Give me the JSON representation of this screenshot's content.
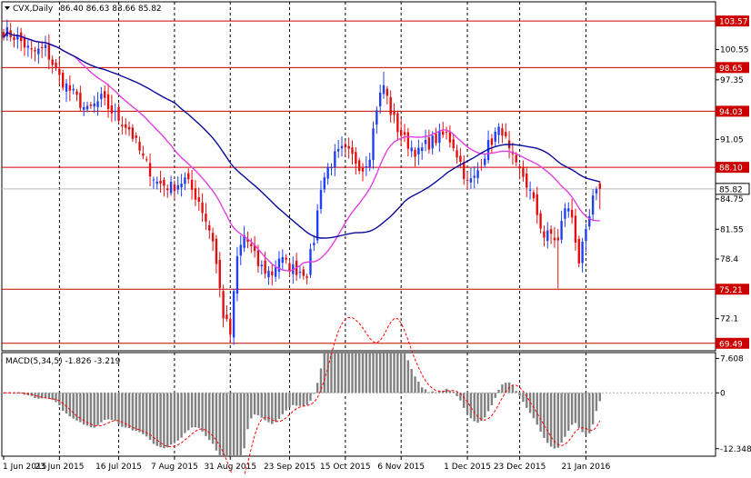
{
  "header": {
    "symbol_label": "CVX,Daily",
    "ohlc_values": "86.40 86.63 83.66 85.82"
  },
  "macd_header": "MACD(5,34,5) -1.826 -3.219",
  "chart_data": [
    {
      "type": "candlestick",
      "symbol": "CVX",
      "timeframe": "Daily",
      "xlabel": "",
      "ylabel": "",
      "ohlc_last": {
        "open": 86.4,
        "high": 86.63,
        "low": 83.66,
        "close": 85.82
      },
      "x_ticks": [
        "1 Jun 2015",
        "23 Jun 2015",
        "16 Jul 2015",
        "7 Aug 2015",
        "31 Aug 2015",
        "23 Sep 2015",
        "15 Oct 2015",
        "6 Nov 2015",
        "1 Dec 2015",
        "23 Dec 2015",
        "21 Jan 2016"
      ],
      "y_ticks": [
        100.55,
        97.35,
        91.05,
        84.75,
        81.55,
        78.4,
        72.1
      ],
      "ylim": [
        68.7,
        105.6
      ],
      "price_label": 85.82,
      "levels": [
        {
          "value": 103.57,
          "label": "103.57"
        },
        {
          "value": 98.65,
          "label": "98.65"
        },
        {
          "value": 94.03,
          "label": "94.03"
        },
        {
          "value": 88.1,
          "label": "88.10"
        },
        {
          "value": 75.21,
          "label": "75.21"
        },
        {
          "value": 69.49,
          "label": "69.49"
        }
      ],
      "colors": {
        "up": "#1f3ff0",
        "down": "#e01010",
        "ma_fast": "#e040e0",
        "ma_slow": "#0a0a9a",
        "level": "#cc0000",
        "price_line": "#bbbbbb"
      },
      "close_anchors": [
        [
          0,
          102.5
        ],
        [
          4,
          101.8
        ],
        [
          8,
          100.2
        ],
        [
          12,
          100.6
        ],
        [
          16,
          97.6
        ],
        [
          20,
          95.8
        ],
        [
          24,
          94.0
        ],
        [
          28,
          95.3
        ],
        [
          32,
          93.6
        ],
        [
          36,
          92.2
        ],
        [
          40,
          89.0
        ],
        [
          44,
          86.5
        ],
        [
          48,
          86.0
        ],
        [
          52,
          86.8
        ],
        [
          56,
          84.6
        ],
        [
          60,
          80.5
        ],
        [
          63,
          72.5
        ],
        [
          65,
          70.5
        ],
        [
          67,
          78.5
        ],
        [
          69,
          80.9
        ],
        [
          71,
          79.5
        ],
        [
          73,
          77.8
        ],
        [
          75,
          77.2
        ],
        [
          77,
          76.9
        ],
        [
          79,
          78.6
        ],
        [
          81,
          77.8
        ],
        [
          83,
          77.4
        ],
        [
          85,
          77.2
        ],
        [
          87,
          77.0
        ],
        [
          89,
          80.5
        ],
        [
          91,
          86.2
        ],
        [
          93,
          88.0
        ],
        [
          95,
          89.2
        ],
        [
          97,
          89.8
        ],
        [
          99,
          89.5
        ],
        [
          101,
          88.8
        ],
        [
          103,
          88.0
        ],
        [
          105,
          89.6
        ],
        [
          107,
          94.5
        ],
        [
          109,
          96.8
        ],
        [
          111,
          94.0
        ],
        [
          113,
          92.2
        ],
        [
          115,
          91.0
        ],
        [
          117,
          90.2
        ],
        [
          119,
          89.6
        ],
        [
          121,
          90.4
        ],
        [
          123,
          90.9
        ],
        [
          125,
          91.3
        ],
        [
          127,
          91.6
        ],
        [
          129,
          90.5
        ],
        [
          131,
          88.6
        ],
        [
          133,
          86.4
        ],
        [
          135,
          86.9
        ],
        [
          137,
          88.7
        ],
        [
          139,
          90.4
        ],
        [
          141,
          91.6
        ],
        [
          143,
          92.1
        ],
        [
          145,
          89.6
        ],
        [
          147,
          88.0
        ],
        [
          149,
          87.2
        ],
        [
          151,
          85.4
        ],
        [
          153,
          83.2
        ],
        [
          155,
          80.8
        ],
        [
          157,
          81.0
        ],
        [
          159,
          80.2
        ],
        [
          161,
          84.0
        ],
        [
          163,
          82.9
        ],
        [
          165,
          78.2
        ],
        [
          167,
          80.9
        ],
        [
          169,
          84.6
        ],
        [
          171,
          85.8
        ]
      ],
      "moving_averages": [
        {
          "name": "",
          "period": 21,
          "color": "#e040e0"
        },
        {
          "name": "",
          "period": 50,
          "color": "#0a0a9a"
        }
      ]
    },
    {
      "type": "histogram",
      "indicator": "MACD",
      "params": "5,34,5",
      "values_last": {
        "main": -1.826,
        "signal": -3.219
      },
      "y_ticks": [
        7.608,
        0.0,
        -12.348
      ],
      "ylim": [
        -14.0,
        8.9
      ],
      "colors": {
        "bars": "#808080",
        "signal": "#ff0000",
        "zero": "#b0b0b0"
      }
    }
  ]
}
